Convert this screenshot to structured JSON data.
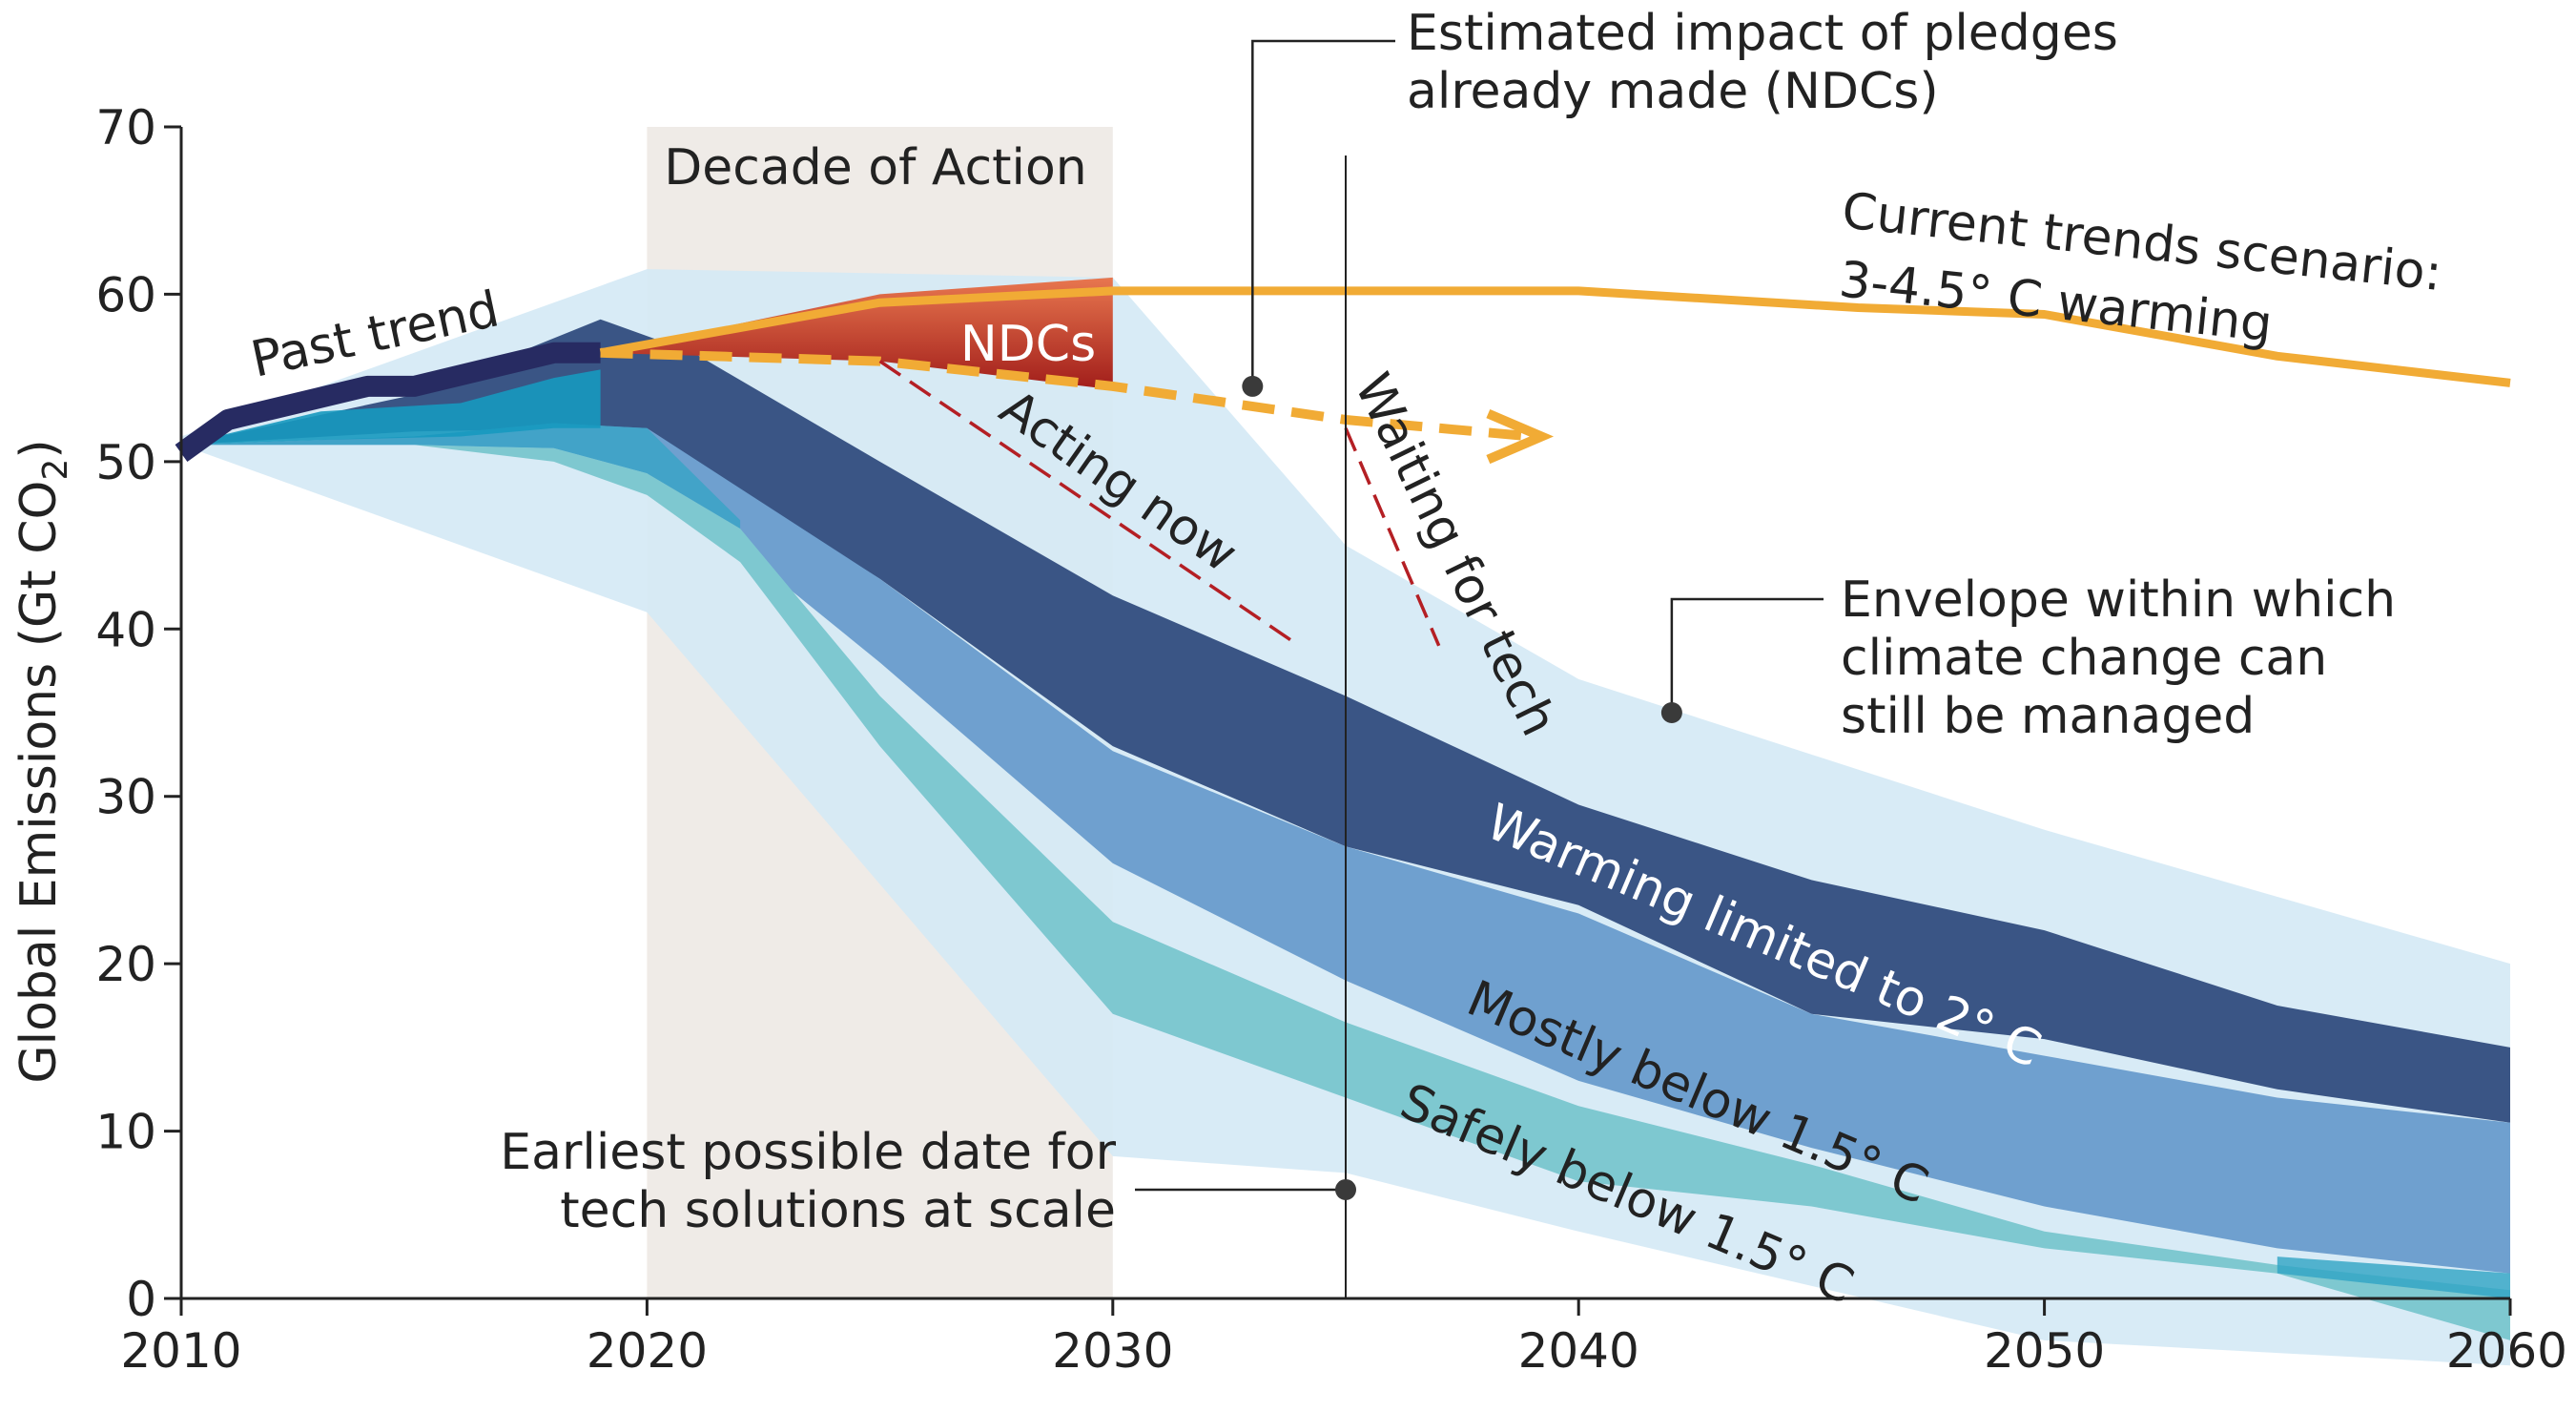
{
  "chart_data": {
    "type": "area",
    "ylabel": "Global Emissions (Gt CO",
    "ylabel_sub": "2",
    "ylabel_close": ")",
    "xlim": [
      2010,
      2060
    ],
    "ylim": [
      0,
      70
    ],
    "xticks": [
      "2010",
      "2020",
      "2030",
      "2040",
      "2050",
      "2060"
    ],
    "yticks": [
      "0",
      "10",
      "20",
      "30",
      "40",
      "50",
      "60",
      "70"
    ],
    "grid": false,
    "colors": {
      "envelope": "#d5e9f5",
      "decade": "#efebe7",
      "band_2c": "#3a5585",
      "band_mostly_15": "#6fa0cf",
      "band_safely_15": "#7ec8d0",
      "band_safely_dark": "#2fa4c4",
      "past_trend": "#272b62",
      "past_fill": "#1799bf",
      "current_trends": "#f1ab35",
      "ndc_dark": "#a11d1a",
      "ndc_light": "#e8774f",
      "dashed_red": "#b41f24",
      "axis": "#222222"
    },
    "decade_of_action": {
      "label": "Decade of Action",
      "x_range": [
        2020,
        2030
      ]
    },
    "reference_line": {
      "x": 2035,
      "label_line1": "Earliest possible date for",
      "label_line2": "tech solutions at scale"
    },
    "series": [
      {
        "name": "Past trend",
        "x": [
          2010,
          2011,
          2014,
          2015,
          2018,
          2019
        ],
        "y": [
          50.5,
          52.5,
          54.5,
          54.5,
          56.5,
          56.5
        ]
      },
      {
        "name": "Current trends scenario: 3-4.5° C warming",
        "x": [
          2019,
          2025,
          2030,
          2040,
          2046,
          2050,
          2055,
          2060
        ],
        "y": [
          56.5,
          59.5,
          60.2,
          60.2,
          59.2,
          58.8,
          56.3,
          54.7
        ]
      },
      {
        "name": "Estimated impact of pledges already made (NDCs)",
        "x": [
          2019,
          2025,
          2030,
          2035,
          2039
        ],
        "y": [
          56.5,
          56.0,
          54.5,
          52.5,
          51.5
        ]
      },
      {
        "name": "Acting now",
        "x": [
          2025,
          2034
        ],
        "y": [
          56.0,
          39.0
        ]
      },
      {
        "name": "Waiting for tech",
        "x": [
          2035,
          2037
        ],
        "y": [
          52.0,
          39.0
        ]
      },
      {
        "name": "NDCs",
        "x": [
          2019,
          2025,
          2030
        ],
        "y_upper": [
          56.5,
          60.0,
          61.0
        ],
        "y_lower": [
          56.5,
          56.0,
          54.3
        ]
      },
      {
        "name": "Envelope within which climate change can still be managed",
        "x": [
          2010,
          2020,
          2030,
          2035,
          2040,
          2050,
          2060
        ],
        "y_upper": [
          51.5,
          61.5,
          61.0,
          45.0,
          37.0,
          28.0,
          20.0
        ],
        "y_lower": [
          51.0,
          41.0,
          8.5,
          7.5,
          4.0,
          -2.5,
          -4.0
        ]
      },
      {
        "name": "Warming limited to 2° C",
        "x": [
          2010,
          2015,
          2019,
          2021,
          2025,
          2030,
          2035,
          2040,
          2045,
          2050,
          2055,
          2060
        ],
        "y_upper": [
          51.0,
          54.0,
          58.5,
          56.5,
          50.0,
          42.0,
          36.0,
          29.5,
          25.0,
          22.0,
          17.5,
          15.0
        ],
        "y_lower": [
          51.0,
          51.8,
          52.0,
          50.0,
          43.0,
          33.0,
          27.0,
          23.5,
          17.0,
          15.5,
          12.5,
          10.5
        ]
      },
      {
        "name": "Mostly below 1.5° C",
        "x": [
          2010,
          2015,
          2018,
          2020,
          2025,
          2030,
          2035,
          2040,
          2045,
          2050,
          2055,
          2060
        ],
        "y_upper": [
          51.0,
          51.5,
          52.3,
          52.0,
          43.0,
          32.7,
          27.0,
          23.0,
          17.0,
          14.5,
          12.0,
          10.5
        ],
        "y_lower": [
          51.0,
          51.0,
          50.8,
          49.3,
          38.0,
          26.0,
          19.0,
          13.0,
          9.0,
          5.5,
          3.0,
          1.5
        ]
      },
      {
        "name": "Safely below 1.5° C",
        "x": [
          2010,
          2015,
          2018,
          2020,
          2022,
          2025,
          2030,
          2035,
          2040,
          2045,
          2050,
          2055,
          2060
        ],
        "y_upper": [
          51.0,
          51.0,
          50.8,
          49.3,
          46.0,
          36.0,
          22.5,
          16.5,
          11.5,
          8.0,
          4.0,
          2.0,
          0.5
        ],
        "y_lower": [
          51.0,
          51.0,
          50.0,
          48.0,
          44.0,
          33.0,
          17.0,
          12.0,
          7.0,
          5.5,
          3.0,
          1.5,
          -2.5
        ]
      }
    ],
    "labels": {
      "past_trend": "Past trend",
      "ndcs": "NDCs",
      "acting_now": "Acting now",
      "waiting_for_tech": "Waiting for tech",
      "current_line1": "Current trends scenario:",
      "current_line2": "3-4.5° C warming",
      "pledges_line1": "Estimated impact of pledges",
      "pledges_line2": "already made (NDCs)",
      "envelope_line1": "Envelope within which",
      "envelope_line2": "climate change can",
      "envelope_line3": "still be managed",
      "band_2c": "Warming limited to 2° C",
      "band_mostly": "Mostly below 1.5° C",
      "band_safely": "Safely below 1.5° C"
    }
  }
}
